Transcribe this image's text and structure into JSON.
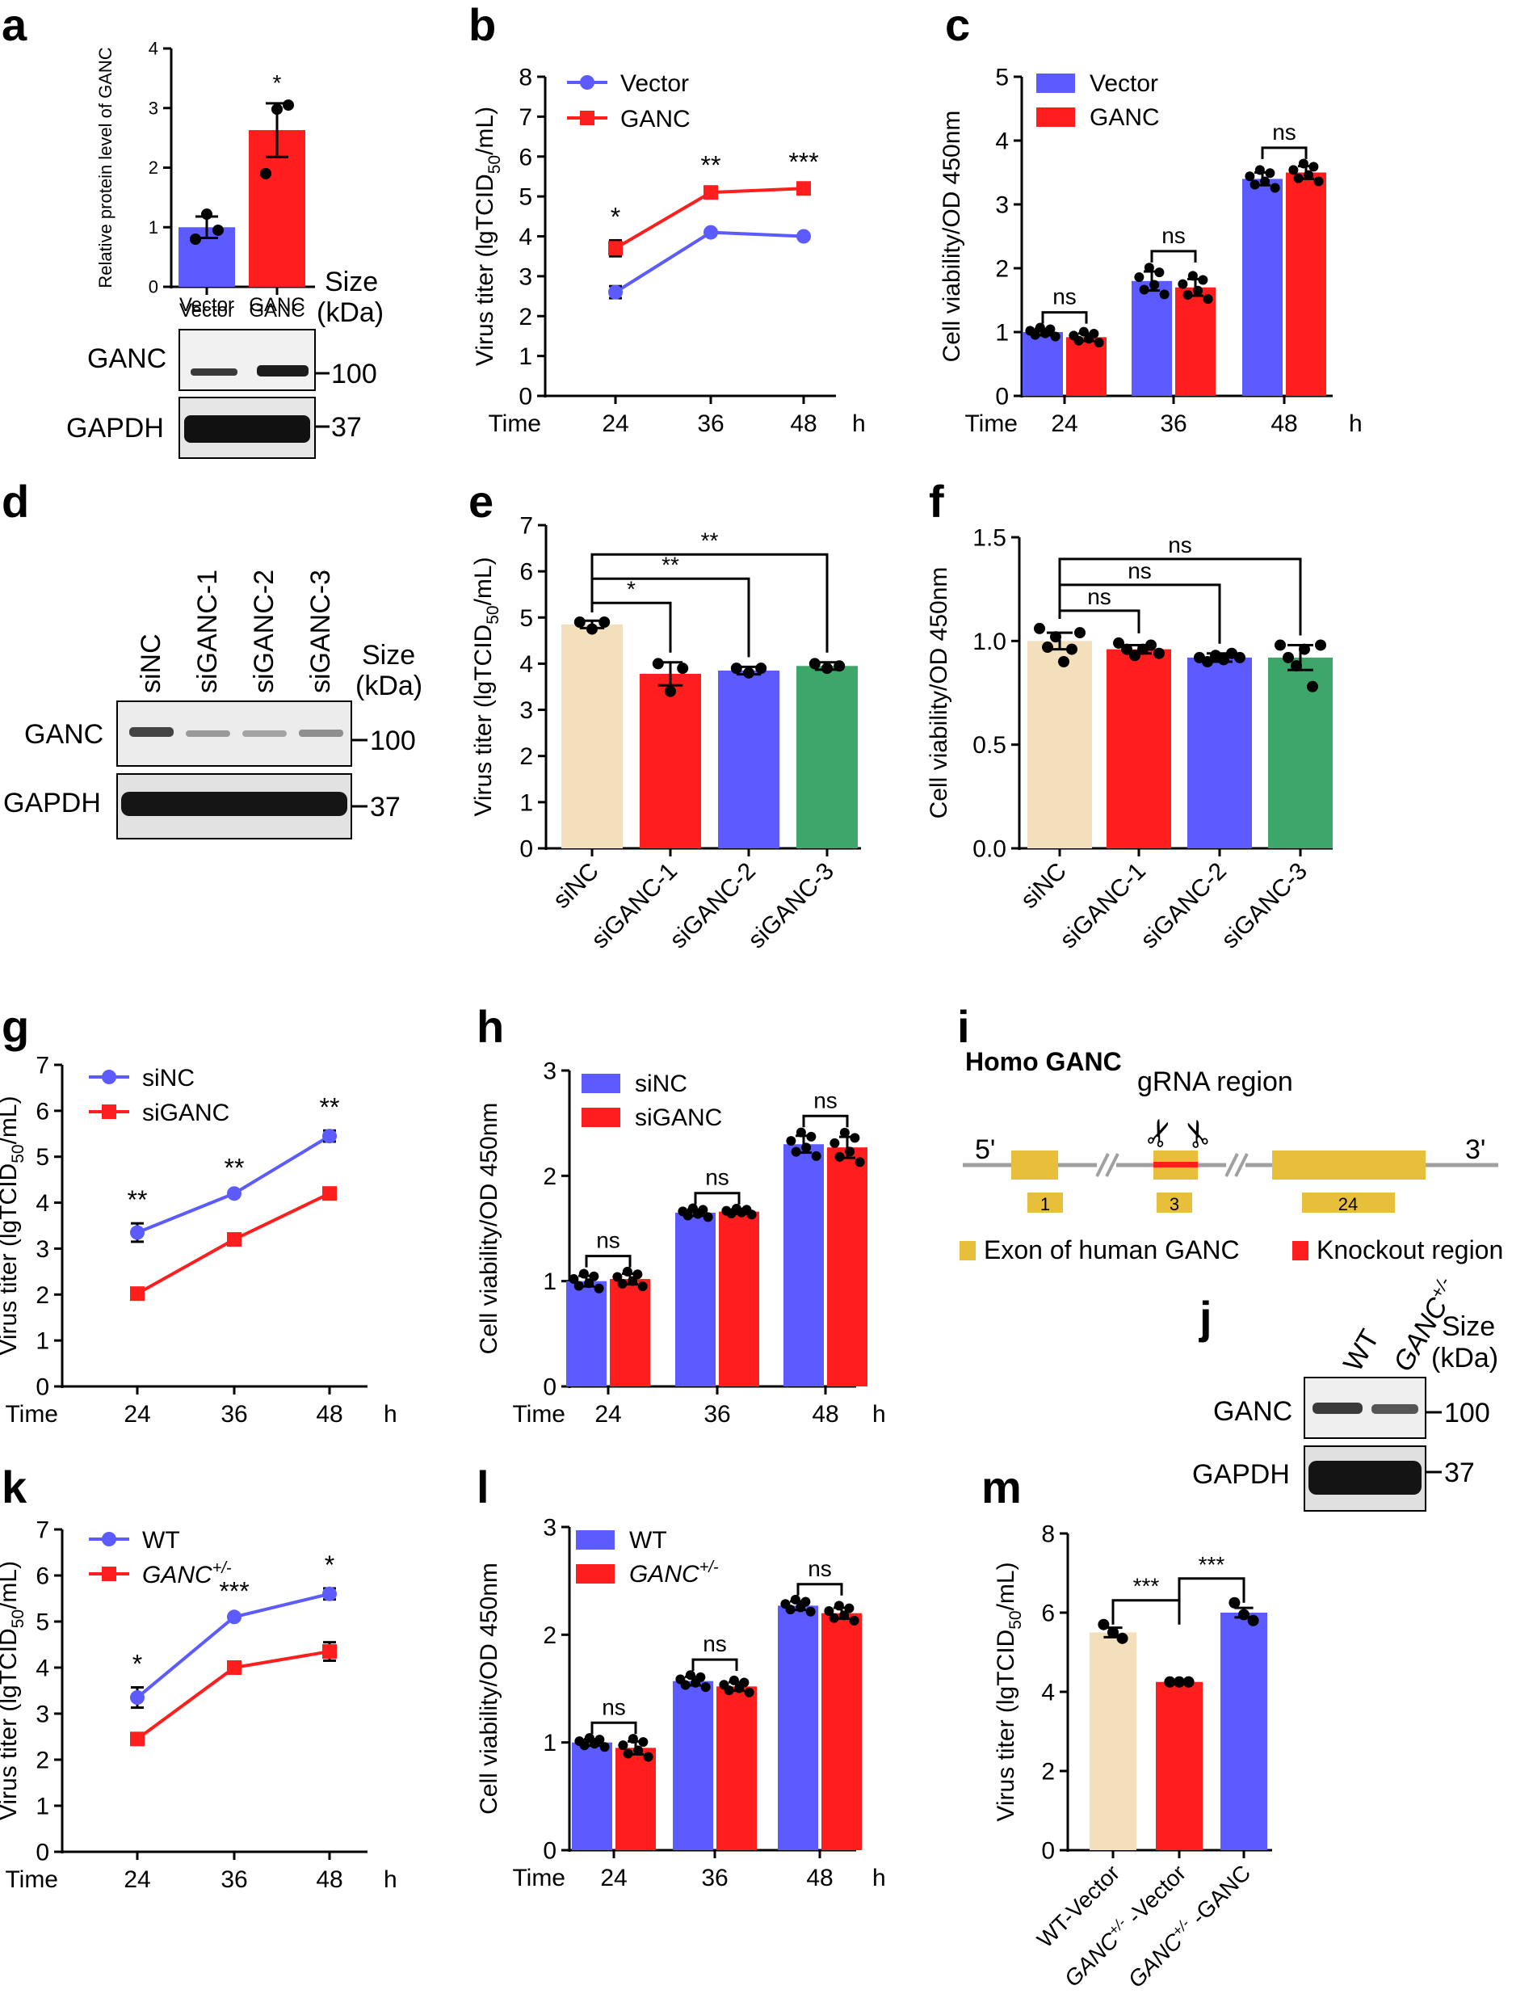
{
  "panel_letters": [
    "a",
    "b",
    "c",
    "d",
    "e",
    "f",
    "g",
    "h",
    "i",
    "j",
    "k",
    "l",
    "m"
  ],
  "colors": {
    "blue": "#5b5bff",
    "red": "#ff1e1e",
    "beige": "#f4dfbd",
    "green": "#3da76a",
    "gold": "#e8bf3a",
    "grey": "#9a9a9a",
    "black": "#000000"
  },
  "blot_labels": {
    "size_header": "Size",
    "kda_header": "(kDa)",
    "ganc": "GANC",
    "gapdh": "GAPDH",
    "mw_100": "100",
    "mw_37": "37"
  },
  "chart_data": [
    {
      "id": "a",
      "type": "bar",
      "ylabel": "Relative protein level of GANC",
      "categories": [
        "Vector",
        "GANC"
      ],
      "values": [
        1.0,
        2.63
      ],
      "errors": [
        0.18,
        0.45
      ],
      "points": [
        [
          0.8,
          1.22,
          0.95
        ],
        [
          1.9,
          2.98,
          3.05
        ]
      ],
      "colors": [
        "blue",
        "red"
      ],
      "ylim": [
        0,
        4
      ],
      "yticks": [
        "0",
        "1",
        "2",
        "3",
        "4"
      ],
      "annotations": [
        {
          "text": "*",
          "cat": 1
        }
      ]
    },
    {
      "id": "b",
      "type": "line",
      "ylabel": "Virus titer (lgTCID50/mL)",
      "ylabel_main": "Virus titer (lgTCID",
      "ylabel_sub": "50",
      "ylabel_tail": "/mL)",
      "x": [
        "24",
        "36",
        "48"
      ],
      "time_label": "Time",
      "unit_label": "h",
      "series": [
        {
          "name": "Vector",
          "values": [
            2.6,
            4.1,
            4.0
          ],
          "errors": [
            0.15,
            0.05,
            0.05
          ],
          "color": "blue",
          "marker": "circle"
        },
        {
          "name": "GANC",
          "values": [
            3.7,
            5.1,
            5.2
          ],
          "errors": [
            0.2,
            0.1,
            0.08
          ],
          "color": "red",
          "marker": "square"
        }
      ],
      "ylim": [
        0,
        8
      ],
      "yticks": [
        "0",
        "1",
        "2",
        "3",
        "4",
        "5",
        "6",
        "7",
        "8"
      ],
      "significance": [
        "*",
        "**",
        "***"
      ]
    },
    {
      "id": "c",
      "type": "bar",
      "ylabel": "Cell viability/OD 450nm",
      "x": [
        "24",
        "36",
        "48"
      ],
      "time_label": "Time",
      "unit_label": "h",
      "series": [
        {
          "name": "Vector",
          "values": [
            1.0,
            1.8,
            3.4
          ],
          "errors": [
            0.05,
            0.15,
            0.1
          ],
          "color": "blue"
        },
        {
          "name": "GANC",
          "values": [
            0.92,
            1.7,
            3.5
          ],
          "errors": [
            0.06,
            0.13,
            0.1
          ],
          "color": "red"
        }
      ],
      "ylim": [
        0,
        5
      ],
      "yticks": [
        "0",
        "1",
        "2",
        "3",
        "4",
        "5"
      ],
      "brackets": [
        "ns",
        "ns",
        "ns"
      ]
    },
    {
      "id": "e",
      "type": "bar",
      "ylabel": "Virus titer (lgTCID50/mL)",
      "ylabel_main": "Virus titer (lgTCID",
      "ylabel_sub": "50",
      "ylabel_tail": "/mL)",
      "categories": [
        "siNC",
        "siGANC-1",
        "siGANC-2",
        "siGANC-3"
      ],
      "values": [
        4.85,
        3.78,
        3.85,
        3.95
      ],
      "errors": [
        0.08,
        0.25,
        0.08,
        0.08
      ],
      "points": [
        [
          4.9,
          4.75,
          4.9
        ],
        [
          4.0,
          3.4,
          3.9
        ],
        [
          3.9,
          3.8,
          3.9
        ],
        [
          4.0,
          3.9,
          3.95
        ]
      ],
      "colors": [
        "beige",
        "red",
        "blue",
        "green"
      ],
      "ylim": [
        0,
        7
      ],
      "yticks": [
        "0",
        "1",
        "2",
        "3",
        "4",
        "5",
        "6",
        "7"
      ],
      "brackets": [
        {
          "to": 1,
          "text": "*"
        },
        {
          "to": 2,
          "text": "**"
        },
        {
          "to": 3,
          "text": "**"
        }
      ]
    },
    {
      "id": "f",
      "type": "bar",
      "ylabel": "Cell viability/OD 450nm",
      "categories": [
        "siNC",
        "siGANC-1",
        "siGANC-2",
        "siGANC-3"
      ],
      "values": [
        1.0,
        0.96,
        0.92,
        0.92
      ],
      "errors": [
        0.04,
        0.02,
        0.02,
        0.06
      ],
      "points": [
        [
          1.06,
          0.97,
          1.02,
          0.9,
          0.96,
          1.04
        ],
        [
          0.99,
          0.96,
          0.93,
          0.96,
          0.98,
          0.94
        ],
        [
          0.92,
          0.9,
          0.93,
          0.91,
          0.94,
          0.92
        ],
        [
          0.98,
          0.92,
          0.88,
          0.96,
          0.78,
          0.98
        ]
      ],
      "colors": [
        "beige",
        "red",
        "blue",
        "green"
      ],
      "ylim": [
        0,
        1.5
      ],
      "yticks": [
        "0.0",
        "0.5",
        "1.0",
        "1.5"
      ],
      "brackets": [
        {
          "to": 1,
          "text": "ns"
        },
        {
          "to": 2,
          "text": "ns"
        },
        {
          "to": 3,
          "text": "ns"
        }
      ]
    },
    {
      "id": "g",
      "type": "line",
      "ylabel": "Virus titer (lgTCID50/mL)",
      "ylabel_main": "Virus titer (lgTCID",
      "ylabel_sub": "50",
      "ylabel_tail": "/mL)",
      "x": [
        "24",
        "36",
        "48"
      ],
      "time_label": "Time",
      "unit_label": "h",
      "series": [
        {
          "name": "siNC",
          "values": [
            3.35,
            4.2,
            5.45
          ],
          "errors": [
            0.2,
            0.05,
            0.12
          ],
          "color": "blue",
          "marker": "circle"
        },
        {
          "name": "siGANC",
          "values": [
            2.02,
            3.2,
            4.2
          ],
          "errors": [
            0.05,
            0.05,
            0.05
          ],
          "color": "red",
          "marker": "square"
        }
      ],
      "ylim": [
        0,
        7
      ],
      "yticks": [
        "0",
        "1",
        "2",
        "3",
        "4",
        "5",
        "6",
        "7"
      ],
      "significance": [
        "**",
        "**",
        "**"
      ]
    },
    {
      "id": "h",
      "type": "bar",
      "ylabel": "Cell viability/OD 450nm",
      "x": [
        "24",
        "36",
        "48"
      ],
      "time_label": "Time",
      "unit_label": "h",
      "series": [
        {
          "name": "siNC",
          "values": [
            1.0,
            1.65,
            2.3
          ],
          "errors": [
            0.05,
            0.03,
            0.08
          ],
          "color": "blue"
        },
        {
          "name": "siGANC",
          "values": [
            1.02,
            1.66,
            2.27
          ],
          "errors": [
            0.05,
            0.02,
            0.1
          ],
          "color": "red"
        }
      ],
      "ylim": [
        0,
        3
      ],
      "yticks": [
        "0",
        "1",
        "2",
        "3"
      ],
      "brackets": [
        "ns",
        "ns",
        "ns"
      ]
    },
    {
      "id": "k",
      "type": "line",
      "ylabel": "Virus titer (lgTCID50/mL)",
      "ylabel_main": "Virus titer (lgTCID",
      "ylabel_sub": "50",
      "ylabel_tail": "/mL)",
      "x": [
        "24",
        "36",
        "48"
      ],
      "time_label": "Time",
      "unit_label": "h",
      "series": [
        {
          "name": "WT",
          "name_sup": "",
          "values": [
            3.35,
            5.1,
            5.6
          ],
          "errors": [
            0.22,
            0.05,
            0.12
          ],
          "color": "blue",
          "marker": "circle"
        },
        {
          "name": "GANC",
          "name_sup": "+/-",
          "values": [
            2.45,
            4.0,
            4.35
          ],
          "errors": [
            0.1,
            0.08,
            0.2
          ],
          "color": "red",
          "marker": "square"
        }
      ],
      "ylim": [
        0,
        7
      ],
      "yticks": [
        "0",
        "1",
        "2",
        "3",
        "4",
        "5",
        "6",
        "7"
      ],
      "significance": [
        "*",
        "***",
        "*"
      ]
    },
    {
      "id": "l",
      "type": "bar",
      "ylabel": "Cell viability/OD 450nm",
      "x": [
        "24",
        "36",
        "48"
      ],
      "time_label": "Time",
      "unit_label": "h",
      "series": [
        {
          "name": "WT",
          "name_sup": "",
          "values": [
            1.0,
            1.57,
            2.27
          ],
          "errors": [
            0.03,
            0.04,
            0.04
          ],
          "color": "blue"
        },
        {
          "name": "GANC",
          "name_sup": "+/-",
          "values": [
            0.95,
            1.52,
            2.2
          ],
          "errors": [
            0.06,
            0.04,
            0.05
          ],
          "color": "red"
        }
      ],
      "ylim": [
        0,
        3
      ],
      "yticks": [
        "0",
        "1",
        "2",
        "3"
      ],
      "brackets": [
        "ns",
        "ns",
        "ns"
      ]
    },
    {
      "id": "m",
      "type": "bar",
      "ylabel": "Virus titer (lgTCID50/mL)",
      "ylabel_main": "Virus titer (lgTCID",
      "ylabel_sub": "50",
      "ylabel_tail": "/mL)",
      "categories": [
        "WT-Vector",
        "GANC+/- -Vector",
        "GANC+/- -GANC"
      ],
      "cat_labels": [
        {
          "main": "WT-Vector",
          "sup": "",
          "tail": ""
        },
        {
          "main": "GANC",
          "sup": "+/-",
          "tail": " -Vector"
        },
        {
          "main": "GANC",
          "sup": "+/-",
          "tail": " -GANC"
        }
      ],
      "values": [
        5.5,
        4.25,
        6.0
      ],
      "errors": [
        0.12,
        0.02,
        0.12
      ],
      "points": [
        [
          5.7,
          5.5,
          5.35
        ],
        [
          4.25,
          4.25,
          4.25
        ],
        [
          6.25,
          5.95,
          5.8
        ]
      ],
      "colors": [
        "beige",
        "red",
        "blue"
      ],
      "ylim": [
        0,
        8
      ],
      "yticks": [
        "0",
        "2",
        "4",
        "6",
        "8"
      ],
      "brackets": [
        {
          "from": 0,
          "to": 1,
          "text": "***"
        },
        {
          "from": 1,
          "to": 2,
          "text": "***"
        }
      ]
    }
  ],
  "blots": {
    "a": {
      "lanes": [
        "Vector",
        "GANC"
      ]
    },
    "d": {
      "lanes": [
        "siNC",
        "siGANC-1",
        "siGANC-2",
        "siGANC-3"
      ]
    },
    "j": {
      "lanes": [
        "WT",
        "GANC+/-"
      ],
      "lane2_main": "GANC",
      "lane2_sup": "+/-"
    }
  },
  "gene_diagram": {
    "title": "Homo GANC",
    "grna_label": "gRNA region",
    "five_prime": "5'",
    "three_prime": "3'",
    "exons": [
      "1",
      "3",
      "24"
    ],
    "legend_exon": "Exon of human GANC",
    "legend_knockout": "Knockout region",
    "scissors": "✂"
  }
}
